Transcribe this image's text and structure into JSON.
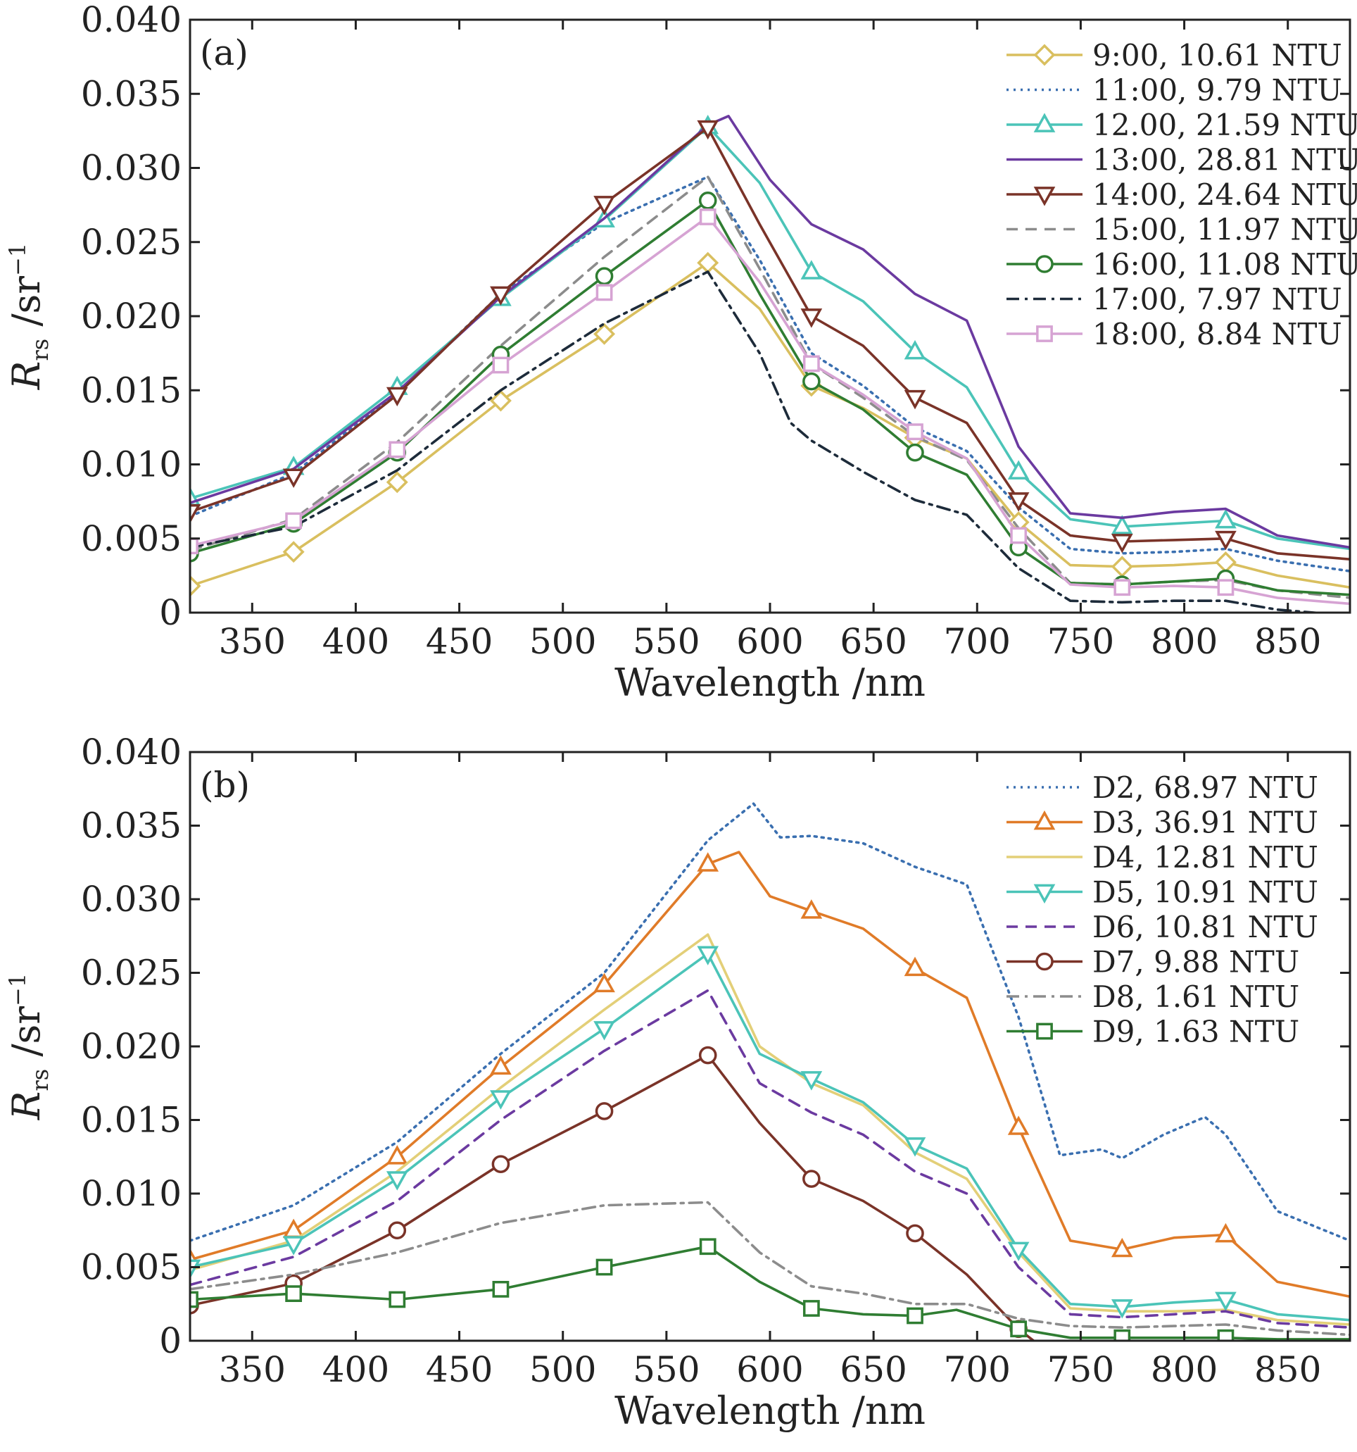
{
  "chart_data": [
    {
      "type": "line",
      "panel_label": "(a)",
      "xlabel": "Wavelength /nm",
      "ylabel_main": "R",
      "ylabel_sub": "rs",
      "ylabel_unit": " /sr",
      "ylabel_sup": "−1",
      "xlim": [
        320,
        880
      ],
      "ylim": [
        0,
        0.04
      ],
      "xticks": [
        350,
        400,
        450,
        500,
        550,
        600,
        650,
        700,
        750,
        800,
        850
      ],
      "yticks": [
        0,
        0.005,
        0.01,
        0.015,
        0.02,
        0.025,
        0.03,
        0.035,
        0.04
      ],
      "ytick_labels": [
        "0",
        "0.005",
        "0.010",
        "0.015",
        "0.020",
        "0.025",
        "0.030",
        "0.035",
        "0.040"
      ],
      "grid": false,
      "legend_position": "top-right",
      "series": [
        {
          "name": "9:00, 10.61 NTU",
          "color": "#d9bf5f",
          "dash": "solid",
          "marker": "diamond",
          "x": [
            320,
            370,
            420,
            470,
            520,
            570,
            595,
            620,
            645,
            670,
            695,
            720,
            745,
            770,
            795,
            820,
            845,
            880
          ],
          "y": [
            0.0018,
            0.0041,
            0.0088,
            0.0143,
            0.0188,
            0.0236,
            0.0205,
            0.0153,
            0.0138,
            0.0118,
            0.0104,
            0.0061,
            0.0032,
            0.0031,
            0.0032,
            0.0034,
            0.0025,
            0.0017
          ]
        },
        {
          "name": "11:00, 9.79 NTU",
          "color": "#3a6fb0",
          "dash": "dotted",
          "marker": "none",
          "x": [
            320,
            370,
            420,
            470,
            520,
            570,
            595,
            620,
            645,
            670,
            695,
            720,
            745,
            770,
            795,
            820,
            845,
            880
          ],
          "y": [
            0.0065,
            0.0094,
            0.0148,
            0.0215,
            0.0263,
            0.0294,
            0.0238,
            0.0175,
            0.0153,
            0.0125,
            0.0109,
            0.0071,
            0.0043,
            0.004,
            0.0041,
            0.0043,
            0.0035,
            0.0028
          ]
        },
        {
          "name": "12.00, 21.59 NTU",
          "color": "#4bc4b8",
          "dash": "solid",
          "marker": "triangle-up",
          "x": [
            320,
            370,
            420,
            470,
            520,
            570,
            595,
            620,
            645,
            670,
            695,
            720,
            745,
            770,
            795,
            820,
            845,
            880
          ],
          "y": [
            0.0077,
            0.0098,
            0.0152,
            0.0212,
            0.0265,
            0.0328,
            0.029,
            0.023,
            0.021,
            0.0176,
            0.0152,
            0.0095,
            0.0063,
            0.0058,
            0.006,
            0.0062,
            0.005,
            0.0043
          ]
        },
        {
          "name": "13:00, 28.81 NTU",
          "color": "#6b3aa0",
          "dash": "solid",
          "marker": "none",
          "x": [
            320,
            370,
            420,
            470,
            520,
            570,
            580,
            600,
            620,
            645,
            670,
            695,
            720,
            745,
            770,
            795,
            820,
            845,
            880
          ],
          "y": [
            0.0074,
            0.0097,
            0.0149,
            0.0213,
            0.0266,
            0.0329,
            0.0335,
            0.0292,
            0.0262,
            0.0245,
            0.0215,
            0.0197,
            0.0112,
            0.0067,
            0.0064,
            0.0068,
            0.007,
            0.0052,
            0.0044
          ]
        },
        {
          "name": "14:00, 24.64 NTU",
          "color": "#7a3328",
          "dash": "solid",
          "marker": "triangle-down",
          "x": [
            320,
            370,
            420,
            470,
            520,
            570,
            595,
            620,
            645,
            670,
            695,
            720,
            745,
            770,
            795,
            820,
            845,
            880
          ],
          "y": [
            0.0068,
            0.0092,
            0.0147,
            0.0215,
            0.0276,
            0.0327,
            0.0262,
            0.02,
            0.018,
            0.0145,
            0.0128,
            0.0076,
            0.0052,
            0.0048,
            0.0049,
            0.005,
            0.004,
            0.0036
          ]
        },
        {
          "name": "15:00, 11.97 NTU",
          "color": "#8c8c8c",
          "dash": "dashed",
          "marker": "none",
          "x": [
            320,
            370,
            420,
            470,
            520,
            570,
            595,
            620,
            645,
            670,
            695,
            720,
            745,
            770,
            795,
            820,
            845,
            880
          ],
          "y": [
            0.0042,
            0.0063,
            0.0115,
            0.018,
            0.024,
            0.0294,
            0.0232,
            0.0168,
            0.0145,
            0.0119,
            0.0103,
            0.0057,
            0.002,
            0.0019,
            0.0021,
            0.0022,
            0.0015,
            0.001
          ]
        },
        {
          "name": "16:00, 11.08 NTU",
          "color": "#2f7d32",
          "dash": "solid",
          "marker": "circle",
          "x": [
            320,
            370,
            420,
            470,
            520,
            570,
            595,
            620,
            645,
            670,
            695,
            720,
            745,
            770,
            795,
            820,
            845,
            880
          ],
          "y": [
            0.004,
            0.006,
            0.0108,
            0.0174,
            0.0227,
            0.0278,
            0.0215,
            0.0156,
            0.0137,
            0.0108,
            0.0093,
            0.0044,
            0.002,
            0.0019,
            0.0021,
            0.0023,
            0.0015,
            0.0012
          ]
        },
        {
          "name": "17:00, 7.97 NTU",
          "color": "#1d2b3a",
          "dash": "dashdot",
          "marker": "none",
          "x": [
            320,
            370,
            420,
            470,
            520,
            570,
            595,
            610,
            620,
            645,
            670,
            695,
            720,
            745,
            770,
            795,
            820,
            845,
            880
          ],
          "y": [
            0.0044,
            0.0058,
            0.0096,
            0.015,
            0.0195,
            0.023,
            0.0175,
            0.0128,
            0.0116,
            0.0095,
            0.0076,
            0.0066,
            0.003,
            0.0008,
            0.0007,
            0.0008,
            0.0008,
            0.0002,
            -0.0002
          ]
        },
        {
          "name": "18:00, 8.84 NTU",
          "color": "#d6a3d3",
          "dash": "solid",
          "marker": "square",
          "x": [
            320,
            370,
            420,
            470,
            520,
            570,
            595,
            620,
            645,
            670,
            695,
            720,
            745,
            770,
            795,
            820,
            845,
            880
          ],
          "y": [
            0.0045,
            0.0062,
            0.011,
            0.0167,
            0.0216,
            0.0267,
            0.0223,
            0.0168,
            0.0147,
            0.0122,
            0.0104,
            0.0052,
            0.0019,
            0.0017,
            0.0018,
            0.0017,
            0.001,
            0.0006
          ]
        }
      ]
    },
    {
      "type": "line",
      "panel_label": "(b)",
      "xlabel": "Wavelength /nm",
      "ylabel_main": "R",
      "ylabel_sub": "rs",
      "ylabel_unit": " /sr",
      "ylabel_sup": "−1",
      "xlim": [
        320,
        880
      ],
      "ylim": [
        0,
        0.04
      ],
      "xticks": [
        350,
        400,
        450,
        500,
        550,
        600,
        650,
        700,
        750,
        800,
        850
      ],
      "yticks": [
        0,
        0.005,
        0.01,
        0.015,
        0.02,
        0.025,
        0.03,
        0.035,
        0.04
      ],
      "ytick_labels": [
        "0",
        "0.005",
        "0.010",
        "0.015",
        "0.020",
        "0.025",
        "0.030",
        "0.035",
        "0.040"
      ],
      "grid": false,
      "legend_position": "top-right",
      "series": [
        {
          "name": "D2, 68.97 NTU",
          "color": "#3a6fb0",
          "dash": "dotted",
          "marker": "none",
          "x": [
            320,
            370,
            420,
            470,
            520,
            570,
            592,
            605,
            620,
            645,
            670,
            695,
            720,
            740,
            760,
            770,
            790,
            810,
            820,
            845,
            880
          ],
          "y": [
            0.0068,
            0.0092,
            0.0135,
            0.0195,
            0.025,
            0.034,
            0.0365,
            0.0342,
            0.0343,
            0.0338,
            0.0322,
            0.031,
            0.022,
            0.0126,
            0.013,
            0.0124,
            0.014,
            0.0152,
            0.014,
            0.0088,
            0.0068
          ]
        },
        {
          "name": "D3, 36.91 NTU",
          "color": "#e07b28",
          "dash": "solid",
          "marker": "triangle-up",
          "x": [
            320,
            370,
            420,
            470,
            520,
            570,
            585,
            600,
            620,
            645,
            670,
            695,
            720,
            745,
            770,
            795,
            820,
            845,
            880
          ],
          "y": [
            0.0055,
            0.0075,
            0.0125,
            0.0186,
            0.0242,
            0.0324,
            0.0332,
            0.0302,
            0.0292,
            0.028,
            0.0253,
            0.0233,
            0.0145,
            0.0068,
            0.0062,
            0.007,
            0.0072,
            0.004,
            0.003
          ]
        },
        {
          "name": "D4, 12.81 NTU",
          "color": "#e3cf78",
          "dash": "solid",
          "marker": "none",
          "x": [
            320,
            370,
            420,
            470,
            520,
            570,
            595,
            620,
            645,
            670,
            695,
            720,
            745,
            770,
            795,
            820,
            845,
            880
          ],
          "y": [
            0.0048,
            0.0068,
            0.0115,
            0.0172,
            0.0225,
            0.0276,
            0.02,
            0.0175,
            0.016,
            0.0128,
            0.011,
            0.006,
            0.0022,
            0.002,
            0.002,
            0.0021,
            0.0014,
            0.0011
          ]
        },
        {
          "name": "D5, 10.91 NTU",
          "color": "#4bc4b8",
          "dash": "solid",
          "marker": "triangle-down",
          "x": [
            320,
            370,
            420,
            470,
            520,
            570,
            595,
            620,
            645,
            670,
            695,
            720,
            745,
            770,
            795,
            820,
            845,
            880
          ],
          "y": [
            0.005,
            0.0066,
            0.011,
            0.0165,
            0.0212,
            0.0263,
            0.0195,
            0.0178,
            0.0162,
            0.0133,
            0.0117,
            0.0062,
            0.0025,
            0.0023,
            0.0026,
            0.0028,
            0.0018,
            0.0014
          ]
        },
        {
          "name": "D6, 10.81 NTU",
          "color": "#6b3aa0",
          "dash": "dashed",
          "marker": "none",
          "x": [
            320,
            370,
            420,
            470,
            520,
            570,
            595,
            620,
            645,
            670,
            695,
            720,
            745,
            770,
            795,
            820,
            845,
            880
          ],
          "y": [
            0.0038,
            0.0057,
            0.0095,
            0.015,
            0.0197,
            0.0238,
            0.0175,
            0.0155,
            0.014,
            0.0115,
            0.01,
            0.005,
            0.0018,
            0.0016,
            0.0018,
            0.002,
            0.0012,
            0.0009
          ]
        },
        {
          "name": "D7, 9.88 NTU",
          "color": "#7a3328",
          "dash": "solid",
          "marker": "circle",
          "x": [
            320,
            370,
            420,
            470,
            520,
            570,
            595,
            620,
            645,
            670,
            695,
            720,
            730
          ],
          "y": [
            0.0024,
            0.0039,
            0.0075,
            0.012,
            0.0156,
            0.0194,
            0.0148,
            0.011,
            0.0095,
            0.0073,
            0.0045,
            0.0008,
            -0.0003
          ]
        },
        {
          "name": "D8, 1.61 NTU",
          "color": "#8c8c8c",
          "dash": "dashdot",
          "marker": "none",
          "x": [
            320,
            370,
            420,
            470,
            520,
            570,
            595,
            620,
            645,
            670,
            695,
            720,
            745,
            770,
            795,
            820,
            845,
            880
          ],
          "y": [
            0.0035,
            0.0045,
            0.006,
            0.008,
            0.0092,
            0.0094,
            0.006,
            0.0037,
            0.0032,
            0.0025,
            0.0025,
            0.0015,
            0.001,
            0.0009,
            0.001,
            0.0011,
            0.0007,
            0.0004
          ]
        },
        {
          "name": "D9, 1.63 NTU",
          "color": "#2f7d32",
          "dash": "solid",
          "marker": "square",
          "x": [
            320,
            370,
            420,
            470,
            520,
            570,
            595,
            620,
            645,
            670,
            690,
            720,
            745,
            770,
            795,
            820,
            845,
            880
          ],
          "y": [
            0.0028,
            0.0032,
            0.0028,
            0.0035,
            0.005,
            0.0064,
            0.004,
            0.0022,
            0.0018,
            0.0017,
            0.0021,
            0.0008,
            0.0002,
            0.0002,
            0.0002,
            0.0002,
            0.0001,
            0.0001
          ]
        }
      ]
    }
  ]
}
